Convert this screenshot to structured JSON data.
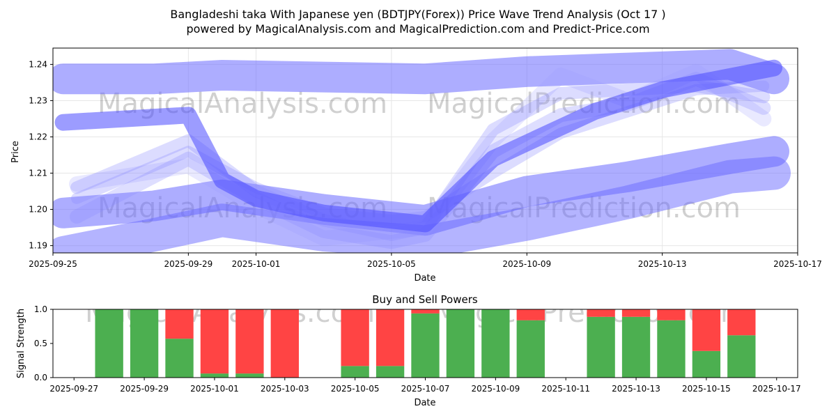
{
  "chart_data": [
    {
      "type": "line",
      "title": "Bangladeshi taka With Japanese yen (BDTJPY(Forex)) Price Wave Trend Analysis (Oct 17 )",
      "subtitle": "powered by MagicalAnalysis.com and MagicalPrediction.com and Predict-Price.com",
      "xlabel": "Date",
      "ylabel": "Price",
      "xlim": [
        0,
        22
      ],
      "ylim": [
        1.188,
        1.2445
      ],
      "x_ticks": [
        {
          "x": 0,
          "label": "2025-09-25"
        },
        {
          "x": 4,
          "label": "2025-09-29"
        },
        {
          "x": 6,
          "label": "2025-10-01"
        },
        {
          "x": 10,
          "label": "2025-10-05"
        },
        {
          "x": 14,
          "label": "2025-10-09"
        },
        {
          "x": 18,
          "label": "2025-10-13"
        },
        {
          "x": 22,
          "label": "2025-10-17"
        }
      ],
      "y_ticks": [
        1.19,
        1.2,
        1.21,
        1.22,
        1.23,
        1.24
      ],
      "watermarks": [
        "MagicalAnalysis.com",
        "MagicalPrediction.com"
      ],
      "series": [
        {
          "name": "upper-band",
          "x": [
            0.3,
            3,
            5,
            8,
            11,
            14,
            17,
            20,
            21.3
          ],
          "values": [
            1.236,
            1.236,
            1.237,
            1.2365,
            1.236,
            1.238,
            1.239,
            1.24,
            1.236
          ]
        },
        {
          "name": "mid-upper-band",
          "x": [
            0.3,
            4,
            5,
            6,
            8,
            11,
            13,
            16,
            18,
            21.3
          ],
          "values": [
            1.224,
            1.226,
            1.208,
            1.203,
            1.199,
            1.196,
            1.214,
            1.227,
            1.233,
            1.239
          ]
        },
        {
          "name": "lower-band",
          "x": [
            0.3,
            3,
            5,
            8,
            11,
            14,
            17,
            20,
            21.3
          ],
          "values": [
            1.199,
            1.201,
            1.204,
            1.2,
            1.197,
            1.205,
            1.209,
            1.214,
            1.216
          ]
        },
        {
          "name": "lowest-band",
          "x": [
            0.3,
            3,
            5,
            8,
            11,
            14,
            17,
            20,
            21.3
          ],
          "values": [
            1.188,
            1.193,
            1.197,
            1.193,
            1.191,
            1.196,
            1.202,
            1.209,
            1.21
          ]
        },
        {
          "name": "wave-1",
          "x": [
            0.7,
            4,
            6,
            8,
            10,
            11,
            13,
            15,
            17,
            19,
            21
          ],
          "values": [
            1.206,
            1.219,
            1.205,
            1.197,
            1.193,
            1.195,
            1.222,
            1.232,
            1.233,
            1.234,
            1.231
          ]
        },
        {
          "name": "wave-2",
          "x": [
            0.7,
            4,
            6,
            8,
            10,
            11,
            13,
            15,
            17,
            19,
            21
          ],
          "values": [
            1.198,
            1.214,
            1.203,
            1.194,
            1.191,
            1.193,
            1.216,
            1.226,
            1.229,
            1.236,
            1.228
          ]
        },
        {
          "name": "wave-3",
          "x": [
            0.7,
            4,
            6,
            8,
            10,
            11,
            13,
            15,
            17,
            19,
            21
          ],
          "values": [
            1.203,
            1.216,
            1.206,
            1.199,
            1.197,
            1.198,
            1.21,
            1.221,
            1.227,
            1.233,
            1.234
          ]
        },
        {
          "name": "wave-4",
          "x": [
            0.7,
            4,
            6,
            8,
            10,
            11,
            13,
            15,
            17,
            19,
            21
          ],
          "values": [
            1.207,
            1.212,
            1.201,
            1.192,
            1.194,
            1.195,
            1.219,
            1.237,
            1.23,
            1.238,
            1.225
          ]
        }
      ]
    },
    {
      "type": "bar",
      "title": "Buy and Sell Powers",
      "xlabel": "Date",
      "ylabel": "Signal Strength",
      "xlim": [
        -0.6,
        20.6
      ],
      "ylim": [
        0,
        1.0
      ],
      "y_ticks": [
        0.0,
        0.5,
        1.0
      ],
      "x_ticks": [
        {
          "x": 0,
          "label": "2025-09-27"
        },
        {
          "x": 2,
          "label": "2025-09-29"
        },
        {
          "x": 4,
          "label": "2025-10-01"
        },
        {
          "x": 6,
          "label": "2025-10-03"
        },
        {
          "x": 8,
          "label": "2025-10-05"
        },
        {
          "x": 10,
          "label": "2025-10-07"
        },
        {
          "x": 12,
          "label": "2025-10-09"
        },
        {
          "x": 14,
          "label": "2025-10-11"
        },
        {
          "x": 16,
          "label": "2025-10-13"
        },
        {
          "x": 18,
          "label": "2025-10-15"
        },
        {
          "x": 20,
          "label": "2025-10-17"
        }
      ],
      "buy_color": "#4caf50",
      "sell_color": "#ff4444",
      "bars": [
        {
          "date": "2025-09-28",
          "x": 1,
          "buy": 1.0,
          "sell": 0.0
        },
        {
          "date": "2025-09-29",
          "x": 2,
          "buy": 1.0,
          "sell": 0.0
        },
        {
          "date": "2025-09-30",
          "x": 3,
          "buy": 0.57,
          "sell": 0.43
        },
        {
          "date": "2025-10-01",
          "x": 4,
          "buy": 0.06,
          "sell": 0.94
        },
        {
          "date": "2025-10-02",
          "x": 5,
          "buy": 0.06,
          "sell": 0.94
        },
        {
          "date": "2025-10-03",
          "x": 6,
          "buy": 0.0,
          "sell": 1.0
        },
        {
          "date": "2025-10-05",
          "x": 8,
          "buy": 0.17,
          "sell": 0.83
        },
        {
          "date": "2025-10-06",
          "x": 9,
          "buy": 0.17,
          "sell": 0.83
        },
        {
          "date": "2025-10-07",
          "x": 10,
          "buy": 0.94,
          "sell": 0.06
        },
        {
          "date": "2025-10-08",
          "x": 11,
          "buy": 1.0,
          "sell": 0.0
        },
        {
          "date": "2025-10-09",
          "x": 12,
          "buy": 1.0,
          "sell": 0.0
        },
        {
          "date": "2025-10-10",
          "x": 13,
          "buy": 0.84,
          "sell": 0.16
        },
        {
          "date": "2025-10-12",
          "x": 15,
          "buy": 0.89,
          "sell": 0.11
        },
        {
          "date": "2025-10-13",
          "x": 16,
          "buy": 0.89,
          "sell": 0.11
        },
        {
          "date": "2025-10-14",
          "x": 17,
          "buy": 0.84,
          "sell": 0.16
        },
        {
          "date": "2025-10-15",
          "x": 18,
          "buy": 0.39,
          "sell": 0.61
        },
        {
          "date": "2025-10-16",
          "x": 19,
          "buy": 0.62,
          "sell": 0.38
        }
      ]
    }
  ]
}
